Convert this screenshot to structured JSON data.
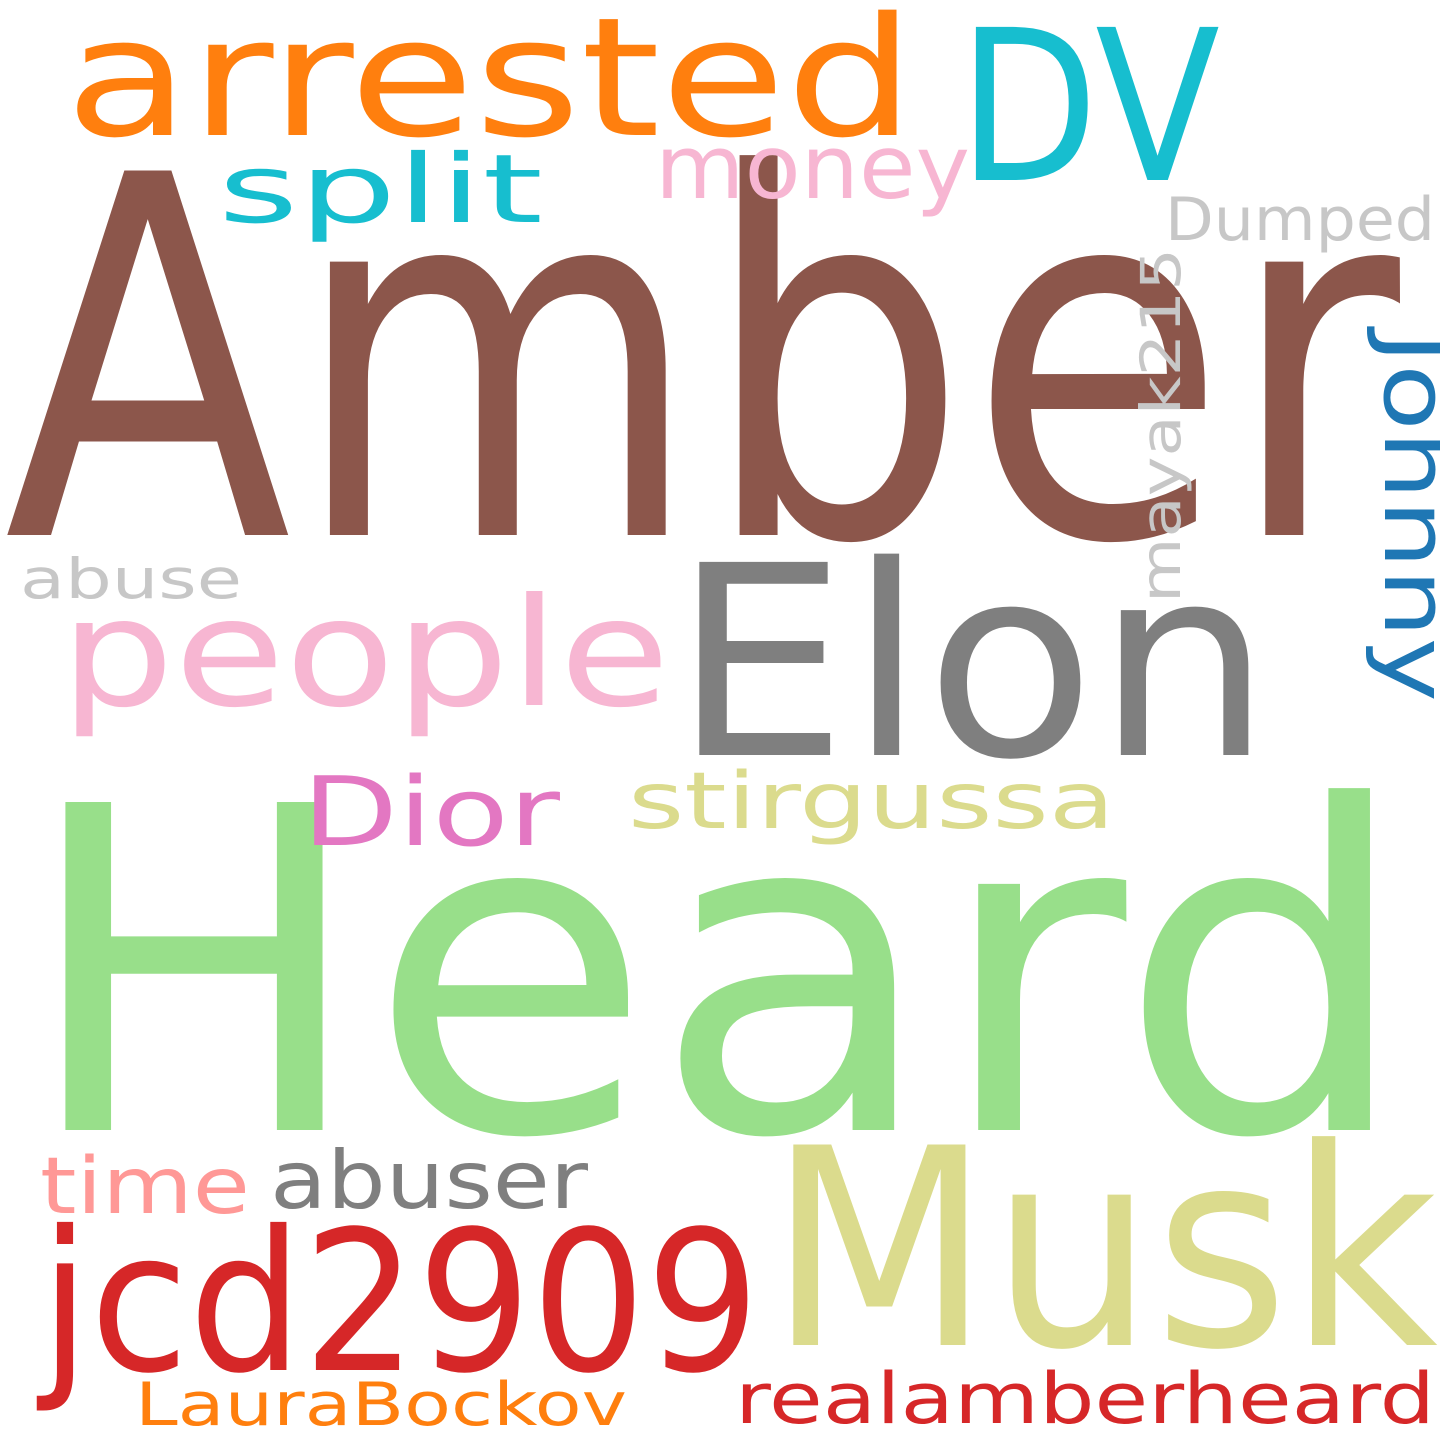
{
  "words": [
    {
      "text": "Amber",
      "color": "#8c564b"
    },
    {
      "text": "Heard",
      "color": "#98df8a"
    },
    {
      "text": "Elon",
      "color": "#7f7f7f"
    },
    {
      "text": "Musk",
      "color": "#dbdb8d"
    },
    {
      "text": "jcd2909",
      "color": "#d62728"
    },
    {
      "text": "DV",
      "color": "#17becf"
    },
    {
      "text": "arrested",
      "color": "#ff7f0e"
    },
    {
      "text": "people",
      "color": "#f7b6d2"
    },
    {
      "text": "Johnny",
      "color": "#1f77b4"
    },
    {
      "text": "split",
      "color": "#17becf"
    },
    {
      "text": "money",
      "color": "#f7b6d2"
    },
    {
      "text": "stirgussa",
      "color": "#dbdb8d"
    },
    {
      "text": "Dior",
      "color": "#e377c2"
    },
    {
      "text": "abuser",
      "color": "#7f7f7f"
    },
    {
      "text": "time",
      "color": "#ff9896"
    },
    {
      "text": "realamberheard",
      "color": "#d62728"
    },
    {
      "text": "LauraBockov",
      "color": "#ff7f0e"
    },
    {
      "text": "Dumped",
      "color": "#c7c7c7"
    },
    {
      "text": "mayak215",
      "color": "#c7c7c7"
    },
    {
      "text": "abuse",
      "color": "#c7c7c7"
    }
  ]
}
